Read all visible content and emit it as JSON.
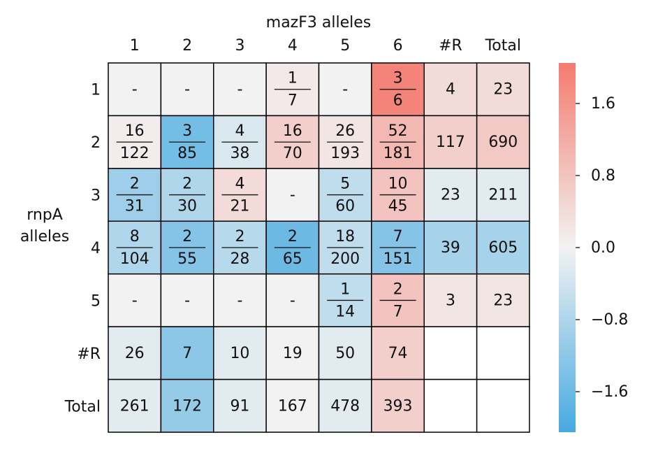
{
  "chart_data": {
    "type": "heatmap",
    "title": "mazF3 alleles",
    "ylabel": "rnpA alleles",
    "x_categories": [
      "1",
      "2",
      "3",
      "4",
      "5",
      "6",
      "#R",
      "Total"
    ],
    "y_categories": [
      "1",
      "2",
      "3",
      "4",
      "5",
      "#R",
      "Total"
    ],
    "values": [
      [
        0,
        0,
        0,
        0.15,
        0,
        1.9,
        0.4,
        0.4
      ],
      [
        0.1,
        -1.5,
        -0.3,
        0.6,
        0.2,
        1.0,
        0.6,
        0.7
      ],
      [
        -1.0,
        -0.8,
        0.4,
        0,
        -0.6,
        0.8,
        -0.2,
        -0.2
      ],
      [
        -0.8,
        -1.3,
        -0.7,
        -1.6,
        -0.6,
        -1.3,
        -0.9,
        -0.9
      ],
      [
        0,
        0,
        0,
        0,
        -0.6,
        0.8,
        0.2,
        0.2
      ],
      [
        -0.2,
        -1.2,
        -0.2,
        0,
        -0.2,
        0.6,
        null,
        null
      ],
      [
        -0.2,
        -1.1,
        -0.2,
        0,
        -0.2,
        0.6,
        null,
        null
      ]
    ],
    "annotations": [
      [
        "-",
        "-",
        "-",
        {
          "numerator": 1,
          "denominator": 7
        },
        "-",
        {
          "numerator": 3,
          "denominator": 6
        },
        4,
        23
      ],
      [
        {
          "numerator": 16,
          "denominator": 122
        },
        {
          "numerator": 3,
          "denominator": 85
        },
        {
          "numerator": 4,
          "denominator": 38
        },
        {
          "numerator": 16,
          "denominator": 70
        },
        {
          "numerator": 26,
          "denominator": 193
        },
        {
          "numerator": 52,
          "denominator": 181
        },
        117,
        690
      ],
      [
        {
          "numerator": 2,
          "denominator": 31
        },
        {
          "numerator": 2,
          "denominator": 30
        },
        {
          "numerator": 4,
          "denominator": 21
        },
        "-",
        {
          "numerator": 5,
          "denominator": 60
        },
        {
          "numerator": 10,
          "denominator": 45
        },
        23,
        211
      ],
      [
        {
          "numerator": 8,
          "denominator": 104
        },
        {
          "numerator": 2,
          "denominator": 55
        },
        {
          "numerator": 2,
          "denominator": 28
        },
        {
          "numerator": 2,
          "denominator": 65
        },
        {
          "numerator": 18,
          "denominator": 200
        },
        {
          "numerator": 7,
          "denominator": 151
        },
        39,
        605
      ],
      [
        "-",
        "-",
        "-",
        "-",
        {
          "numerator": 1,
          "denominator": 14
        },
        {
          "numerator": 2,
          "denominator": 7
        },
        3,
        23
      ],
      [
        26,
        7,
        10,
        19,
        50,
        74,
        null,
        null
      ],
      [
        261,
        172,
        91,
        167,
        478,
        393,
        null,
        null
      ]
    ],
    "colormap": [
      "#46a9e0",
      "#f2f2f2",
      "#f47b6f"
    ],
    "zlim": [
      -2.05,
      2.05
    ],
    "zticks": [
      1.6,
      0.8,
      {
        "value": 0,
        "label": "0.0"
      },
      {
        "value": -0.8,
        "label": "−0.8"
      },
      {
        "value": -1.6,
        "label": "−1.6"
      }
    ]
  }
}
